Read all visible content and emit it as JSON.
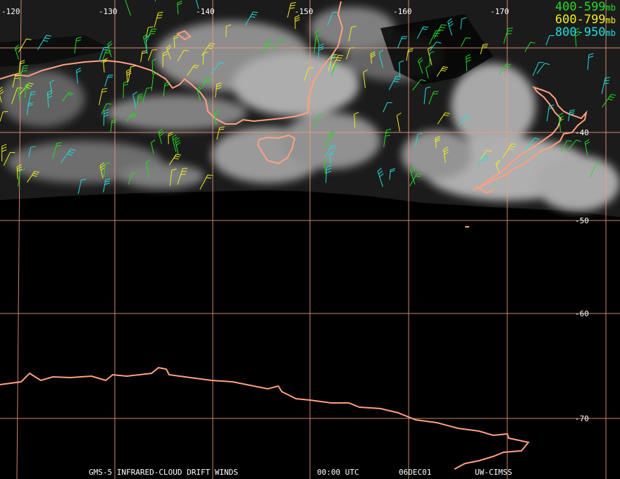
{
  "legend": [
    {
      "range": "400-599",
      "unit": "mb",
      "color": "#22dd22"
    },
    {
      "range": "600-799",
      "unit": "mb",
      "color": "#eeee22"
    },
    {
      "range": "800-950",
      "unit": "mb",
      "color": "#22dddd"
    }
  ],
  "longitude_labels": [
    "-120",
    "-130",
    "-140",
    "-150",
    "-160",
    "-170"
  ],
  "latitude_labels": [
    "-40",
    "-50",
    "-60",
    "-70"
  ],
  "footer": {
    "satellite": "GMS-5 INFRARED-CLOUD DRIFT WINDS",
    "time": "00:00 UTC",
    "date": "06DEC01",
    "source": "UW-CIMSS"
  },
  "colors": {
    "grid": "#f0a080",
    "coast": "#ffa080",
    "cloud": "#c8c8c8",
    "background": "#000000"
  }
}
